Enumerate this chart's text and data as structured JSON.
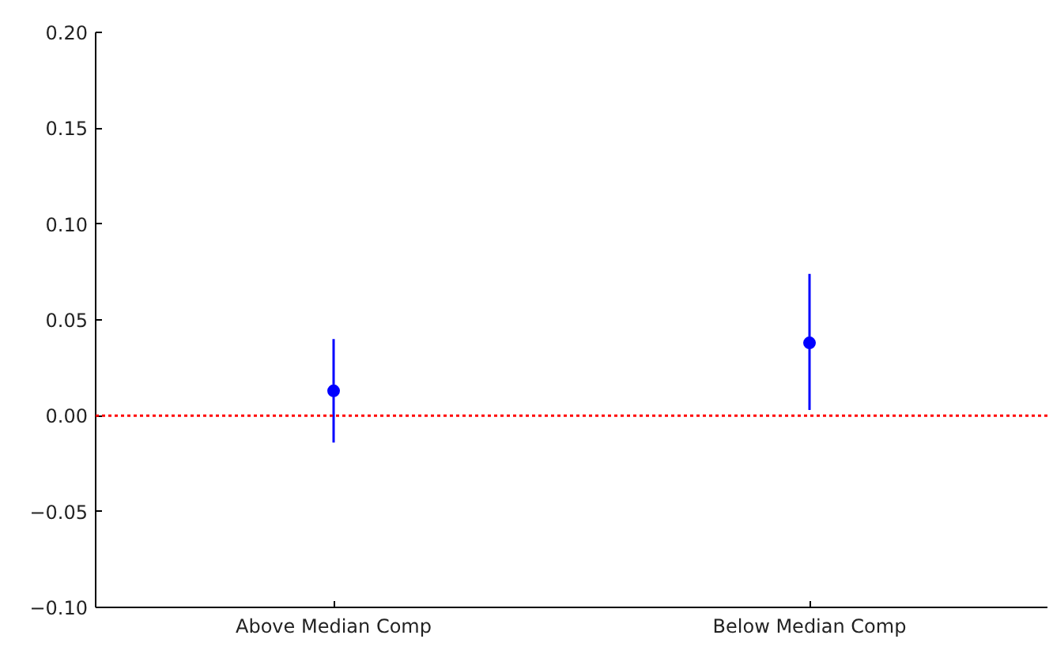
{
  "chart_data": {
    "type": "scatter",
    "categories": [
      "Above Median Comp",
      "Below Median Comp"
    ],
    "series": [
      {
        "color": "#0000ff",
        "values": [
          0.013,
          0.038
        ],
        "errors": [
          [
            -0.014,
            0.04
          ],
          [
            0.003,
            0.074
          ]
        ]
      }
    ],
    "ylim": [
      -0.1,
      0.2
    ],
    "yticks": [
      {
        "value": -0.1,
        "label": "−0.10"
      },
      {
        "value": -0.05,
        "label": "−0.05"
      },
      {
        "value": 0,
        "label": "0.00"
      },
      {
        "value": 0.05,
        "label": "0.05"
      },
      {
        "value": 0.1,
        "label": "0.10"
      },
      {
        "value": 0.15,
        "label": "0.15"
      },
      {
        "value": 0.2,
        "label": "0.20"
      }
    ],
    "ref_lines": [
      {
        "axis": "y",
        "value": 0,
        "color": "#ff0000",
        "line_style": "dotted"
      }
    ],
    "marker": "circle",
    "grid": false
  }
}
